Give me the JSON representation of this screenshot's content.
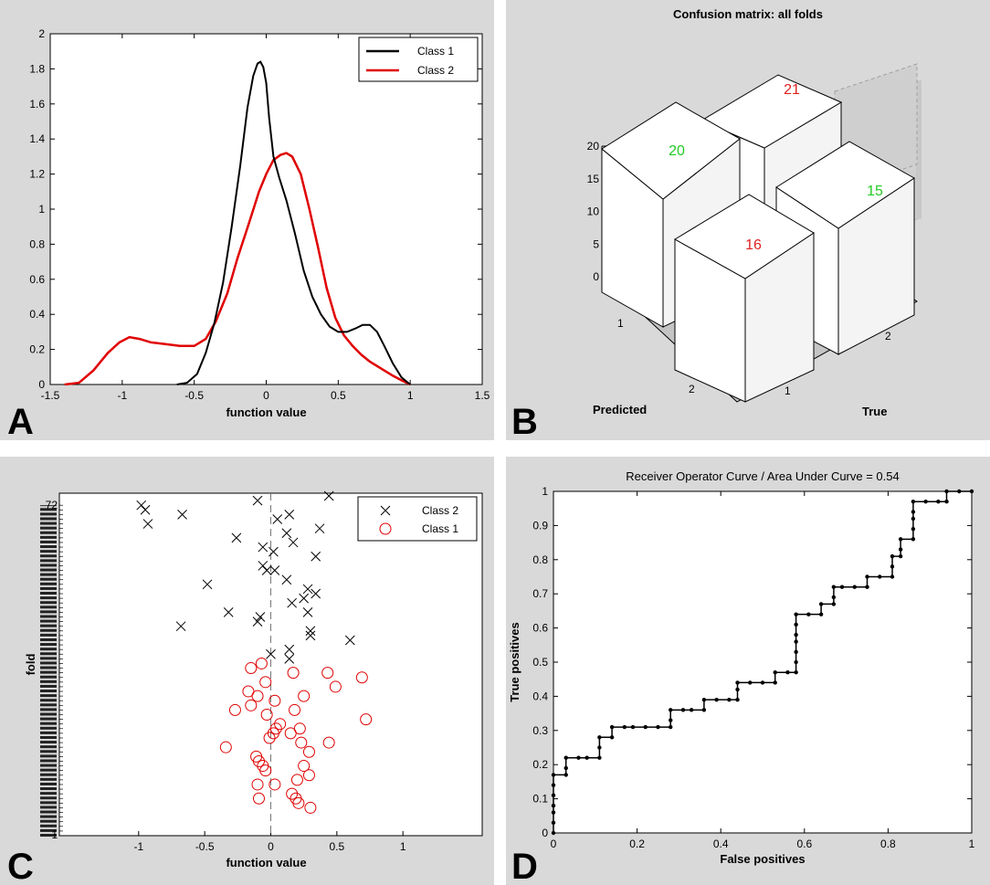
{
  "colors": {
    "panel_bg": "#d9d9d9",
    "plot_bg": "#ffffff",
    "class1": "#000000",
    "class2": "#e00000",
    "correct": "#22cc22",
    "wrong": "#e02020"
  },
  "panels": [
    {
      "letter": "A",
      "chart_data": {
        "type": "line",
        "xlabel": "function value",
        "ylabel": "",
        "xlim": [
          -1.5,
          1.5
        ],
        "ylim": [
          0,
          2
        ],
        "xticks": [
          "-1.5",
          "-1",
          "-0.5",
          "0",
          "0.5",
          "1",
          "1.5"
        ],
        "yticks": [
          "0",
          "0.2",
          "0.4",
          "0.6",
          "0.8",
          "1",
          "1.2",
          "1.4",
          "1.6",
          "1.8",
          "2"
        ],
        "legend": [
          "Class 1",
          "Class 2"
        ],
        "series": [
          {
            "name": "Class 1",
            "color": "#000000",
            "x": [
              -0.62,
              -0.55,
              -0.48,
              -0.42,
              -0.36,
              -0.3,
              -0.24,
              -0.18,
              -0.13,
              -0.09,
              -0.06,
              -0.04,
              -0.02,
              0.0,
              0.02,
              0.05,
              0.09,
              0.14,
              0.2,
              0.26,
              0.32,
              0.38,
              0.44,
              0.5,
              0.56,
              0.62,
              0.67,
              0.72,
              0.77,
              0.82,
              0.88,
              0.94,
              1.0
            ],
            "y": [
              0.0,
              0.01,
              0.06,
              0.18,
              0.35,
              0.58,
              0.9,
              1.25,
              1.58,
              1.76,
              1.83,
              1.84,
              1.81,
              1.72,
              1.52,
              1.3,
              1.18,
              1.05,
              0.86,
              0.65,
              0.5,
              0.4,
              0.33,
              0.3,
              0.3,
              0.32,
              0.34,
              0.34,
              0.3,
              0.22,
              0.12,
              0.04,
              0.0
            ]
          },
          {
            "name": "Class 2",
            "color": "#e00000",
            "x": [
              -1.4,
              -1.3,
              -1.2,
              -1.1,
              -1.02,
              -0.95,
              -0.88,
              -0.8,
              -0.7,
              -0.6,
              -0.5,
              -0.42,
              -0.35,
              -0.27,
              -0.2,
              -0.12,
              -0.05,
              0.0,
              0.05,
              0.1,
              0.14,
              0.18,
              0.24,
              0.3,
              0.36,
              0.42,
              0.48,
              0.54,
              0.6,
              0.66,
              0.72,
              0.8,
              0.88,
              0.95,
              1.0
            ],
            "y": [
              0.0,
              0.01,
              0.08,
              0.18,
              0.24,
              0.27,
              0.26,
              0.24,
              0.23,
              0.22,
              0.22,
              0.26,
              0.36,
              0.52,
              0.72,
              0.92,
              1.1,
              1.2,
              1.28,
              1.31,
              1.32,
              1.3,
              1.2,
              1.0,
              0.78,
              0.55,
              0.38,
              0.28,
              0.22,
              0.17,
              0.13,
              0.09,
              0.05,
              0.02,
              0.0
            ]
          }
        ]
      }
    },
    {
      "letter": "B",
      "chart_data": {
        "type": "bar3d",
        "title": "Confusion matrix: all folds",
        "xlabel": "Predicted",
        "ylabel": "True",
        "zticks": [
          "0",
          "5",
          "10",
          "15",
          "20"
        ],
        "predicted_ticks": [
          "1",
          "2"
        ],
        "true_ticks": [
          "1",
          "2"
        ],
        "values": [
          {
            "predicted": "1",
            "true": "1",
            "value": "20",
            "correct": true
          },
          {
            "predicted": "1",
            "true": "2",
            "value": "21",
            "correct": false
          },
          {
            "predicted": "2",
            "true": "1",
            "value": "16",
            "correct": false
          },
          {
            "predicted": "2",
            "true": "2",
            "value": "15",
            "correct": true
          }
        ]
      }
    },
    {
      "letter": "C",
      "chart_data": {
        "type": "scatter",
        "xlabel": "function value",
        "ylabel": "fold",
        "xlim": [
          -1.6,
          1.6
        ],
        "xticks": [
          "-1",
          "-0.5",
          "0",
          "0.5",
          "1"
        ],
        "ytick_top": "72",
        "ytick_bottom": "1",
        "legend": [
          "Class 2",
          "Class 1"
        ],
        "series": [
          {
            "name": "Class 2",
            "marker": "x",
            "color": "#000000",
            "points": [
              [
                -0.98,
                72
              ],
              [
                -0.95,
                71
              ],
              [
                -0.67,
                70
              ],
              [
                -0.93,
                68
              ],
              [
                -0.1,
                73
              ],
              [
                0.44,
                74
              ],
              [
                0.05,
                69
              ],
              [
                0.14,
                70
              ],
              [
                0.37,
                67
              ],
              [
                -0.26,
                65
              ],
              [
                0.12,
                66
              ],
              [
                0.17,
                64
              ],
              [
                -0.06,
                63
              ],
              [
                0.02,
                62
              ],
              [
                0.34,
                61
              ],
              [
                -0.06,
                59
              ],
              [
                -0.03,
                58
              ],
              [
                0.03,
                58
              ],
              [
                -0.48,
                55
              ],
              [
                0.12,
                56
              ],
              [
                0.34,
                53
              ],
              [
                0.28,
                54
              ],
              [
                0.25,
                52
              ],
              [
                0.16,
                51
              ],
              [
                -0.32,
                49
              ],
              [
                -0.08,
                48
              ],
              [
                -0.1,
                47
              ],
              [
                0.28,
                49
              ],
              [
                -0.68,
                46
              ],
              [
                0.3,
                45
              ],
              [
                0.3,
                44
              ],
              [
                0.6,
                43
              ],
              [
                0.14,
                41
              ],
              [
                0.0,
                40
              ],
              [
                0.14,
                39
              ]
            ]
          },
          {
            "name": "Class 1",
            "marker": "o",
            "color": "#e00000",
            "points": [
              [
                -0.07,
                38
              ],
              [
                -0.15,
                37
              ],
              [
                0.17,
                36
              ],
              [
                0.43,
                36
              ],
              [
                0.69,
                35
              ],
              [
                -0.04,
                34
              ],
              [
                0.49,
                33
              ],
              [
                -0.17,
                32
              ],
              [
                -0.1,
                31
              ],
              [
                0.25,
                31
              ],
              [
                0.03,
                30
              ],
              [
                -0.27,
                28
              ],
              [
                -0.15,
                29
              ],
              [
                0.18,
                28
              ],
              [
                -0.03,
                27
              ],
              [
                0.72,
                26
              ],
              [
                0.07,
                25
              ],
              [
                0.04,
                24
              ],
              [
                0.22,
                24
              ],
              [
                -0.01,
                22
              ],
              [
                0.02,
                23
              ],
              [
                0.15,
                23
              ],
              [
                0.44,
                21
              ],
              [
                0.23,
                21
              ],
              [
                -0.34,
                20
              ],
              [
                0.29,
                19
              ],
              [
                -0.11,
                18
              ],
              [
                -0.09,
                17
              ],
              [
                -0.06,
                16
              ],
              [
                -0.04,
                15
              ],
              [
                0.25,
                16
              ],
              [
                0.29,
                14
              ],
              [
                0.2,
                13
              ],
              [
                -0.1,
                12
              ],
              [
                0.03,
                12
              ],
              [
                0.16,
                10
              ],
              [
                0.19,
                9
              ],
              [
                -0.09,
                9
              ],
              [
                0.21,
                8
              ],
              [
                0.3,
                7
              ]
            ]
          }
        ]
      }
    },
    {
      "letter": "D",
      "chart_data": {
        "type": "line",
        "title": "Receiver Operator Curve / Area Under Curve = 0.54",
        "xlabel": "False positives",
        "ylabel": "True positives",
        "xlim": [
          0,
          1
        ],
        "ylim": [
          0,
          1
        ],
        "xticks": [
          "0",
          "0.2",
          "0.4",
          "0.6",
          "0.8",
          "1"
        ],
        "yticks": [
          "0",
          "0.1",
          "0.2",
          "0.3",
          "0.4",
          "0.5",
          "0.6",
          "0.7",
          "0.8",
          "0.9",
          "1"
        ],
        "series": [
          {
            "name": "ROC",
            "color": "#000000",
            "points": [
              [
                0,
                0
              ],
              [
                0,
                0.03
              ],
              [
                0,
                0.06
              ],
              [
                0,
                0.08
              ],
              [
                0,
                0.11
              ],
              [
                0,
                0.14
              ],
              [
                0,
                0.17
              ],
              [
                0.03,
                0.17
              ],
              [
                0.03,
                0.19
              ],
              [
                0.03,
                0.22
              ],
              [
                0.06,
                0.22
              ],
              [
                0.08,
                0.22
              ],
              [
                0.11,
                0.22
              ],
              [
                0.11,
                0.25
              ],
              [
                0.11,
                0.28
              ],
              [
                0.14,
                0.28
              ],
              [
                0.14,
                0.31
              ],
              [
                0.17,
                0.31
              ],
              [
                0.19,
                0.31
              ],
              [
                0.22,
                0.31
              ],
              [
                0.25,
                0.31
              ],
              [
                0.28,
                0.31
              ],
              [
                0.28,
                0.33
              ],
              [
                0.28,
                0.36
              ],
              [
                0.31,
                0.36
              ],
              [
                0.33,
                0.36
              ],
              [
                0.36,
                0.36
              ],
              [
                0.36,
                0.39
              ],
              [
                0.39,
                0.39
              ],
              [
                0.42,
                0.39
              ],
              [
                0.44,
                0.39
              ],
              [
                0.44,
                0.42
              ],
              [
                0.44,
                0.44
              ],
              [
                0.47,
                0.44
              ],
              [
                0.5,
                0.44
              ],
              [
                0.53,
                0.44
              ],
              [
                0.53,
                0.47
              ],
              [
                0.56,
                0.47
              ],
              [
                0.58,
                0.47
              ],
              [
                0.58,
                0.5
              ],
              [
                0.58,
                0.53
              ],
              [
                0.58,
                0.56
              ],
              [
                0.58,
                0.58
              ],
              [
                0.58,
                0.61
              ],
              [
                0.58,
                0.64
              ],
              [
                0.61,
                0.64
              ],
              [
                0.64,
                0.64
              ],
              [
                0.64,
                0.67
              ],
              [
                0.67,
                0.67
              ],
              [
                0.67,
                0.69
              ],
              [
                0.67,
                0.72
              ],
              [
                0.69,
                0.72
              ],
              [
                0.72,
                0.72
              ],
              [
                0.75,
                0.72
              ],
              [
                0.75,
                0.75
              ],
              [
                0.78,
                0.75
              ],
              [
                0.81,
                0.75
              ],
              [
                0.81,
                0.78
              ],
              [
                0.81,
                0.81
              ],
              [
                0.83,
                0.81
              ],
              [
                0.83,
                0.83
              ],
              [
                0.83,
                0.86
              ],
              [
                0.86,
                0.86
              ],
              [
                0.86,
                0.89
              ],
              [
                0.86,
                0.92
              ],
              [
                0.86,
                0.94
              ],
              [
                0.86,
                0.97
              ],
              [
                0.89,
                0.97
              ],
              [
                0.92,
                0.97
              ],
              [
                0.94,
                0.97
              ],
              [
                0.94,
                1.0
              ],
              [
                0.97,
                1.0
              ],
              [
                1.0,
                1.0
              ]
            ]
          }
        ]
      }
    }
  ]
}
